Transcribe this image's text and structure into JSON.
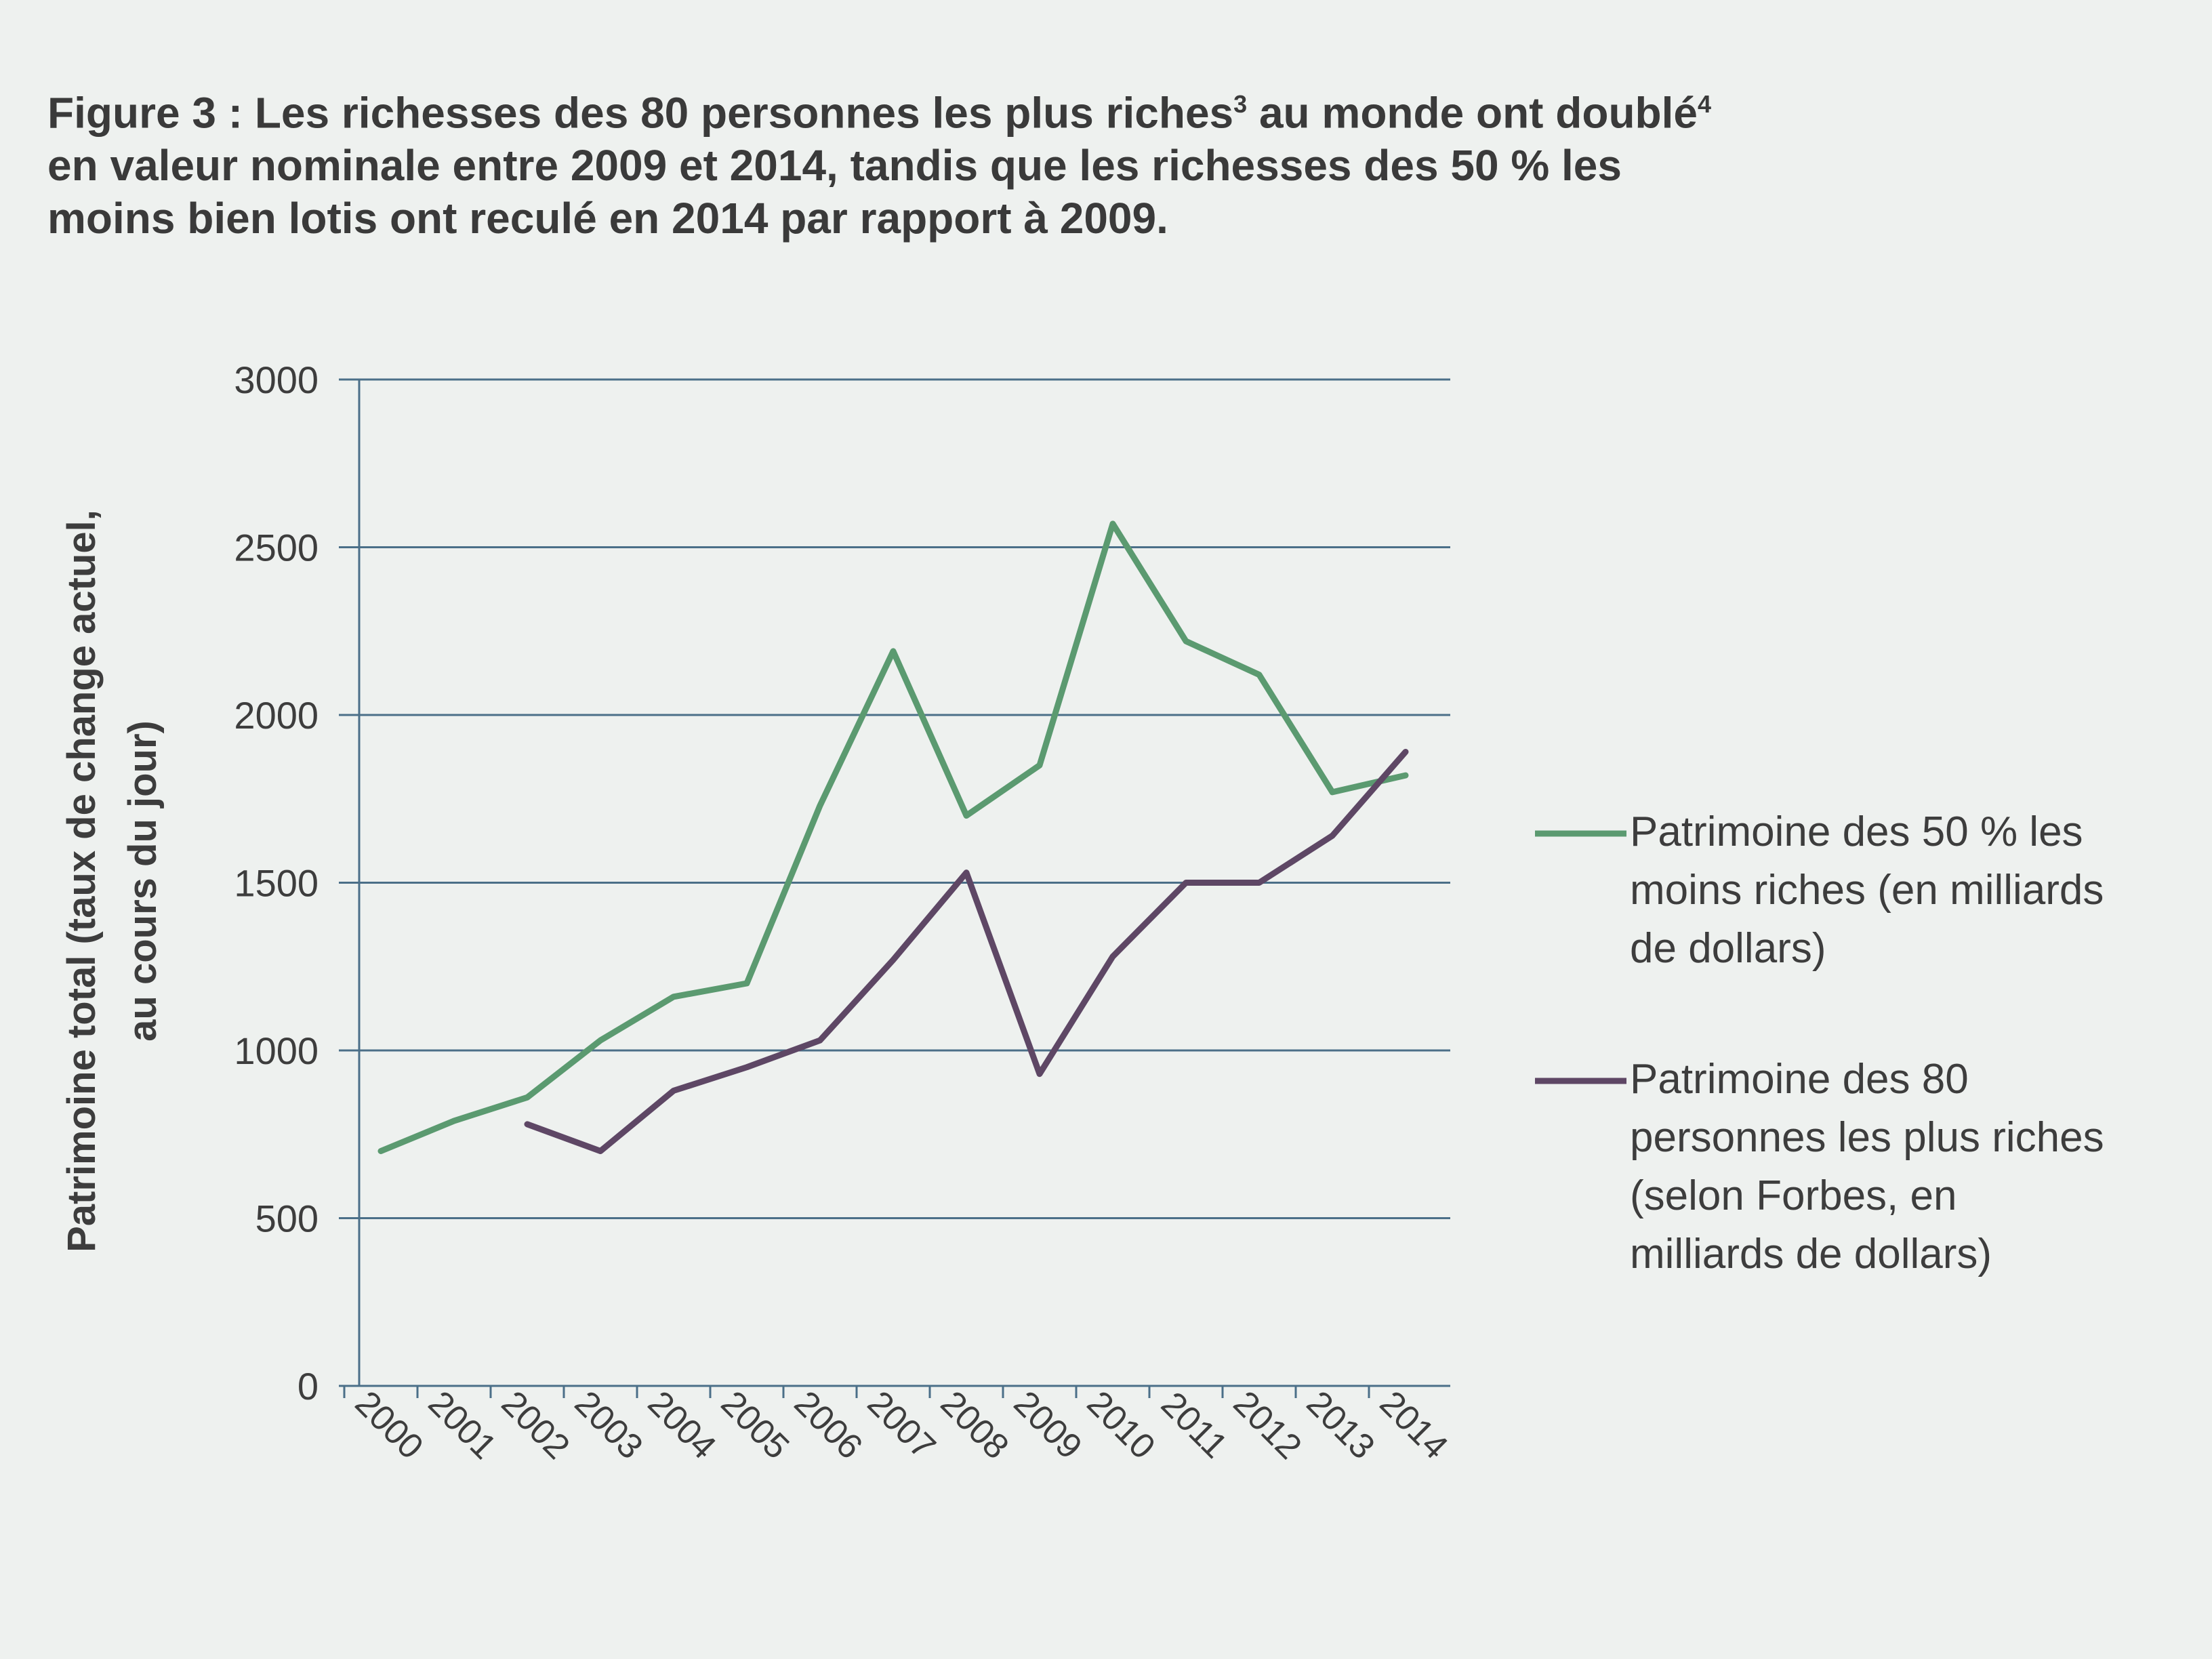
{
  "figure": {
    "label": "Figure 3 :",
    "line1": "Les richesses des 80 personnes les plus riches",
    "sup1": "3",
    "line1b": " au monde ont doublé",
    "sup2": "4",
    "line2": "en valeur nominale entre 2009 et 2014, tandis que les richesses des 50 % les",
    "line3": "moins bien lotis ont reculé en 2014 par rapport à 2009."
  },
  "chart_data": {
    "type": "line",
    "title": "",
    "xlabel": "",
    "ylabel": "Patrimoine total (taux de change actuel, au cours du jour)",
    "ylabel_lines": [
      "Patrimoine total (taux de change actuel,",
      "au cours du jour)"
    ],
    "x": [
      "2000",
      "2001",
      "2002",
      "2003",
      "2004",
      "2005",
      "2006",
      "2007",
      "2008",
      "2009",
      "2010",
      "2011",
      "2012",
      "2013",
      "2014"
    ],
    "ylim": [
      0,
      3000
    ],
    "yticks": [
      0,
      500,
      1000,
      1500,
      2000,
      2500,
      3000
    ],
    "grid": "horizontal",
    "legend_position": "right",
    "series": [
      {
        "name": "Patrimoine des 50 % les moins riches (en milliards de dollars)",
        "legend_lines": [
          "Patrimoine des 50 % les",
          "moins riches (en milliards",
          "de dollars)"
        ],
        "color": "#5b9a70",
        "values": [
          700,
          790,
          860,
          1030,
          1160,
          1200,
          1730,
          2190,
          1700,
          1850,
          2570,
          2220,
          2120,
          1770,
          1820
        ]
      },
      {
        "name": "Patrimoine des 80 personnes les plus riches (selon Forbes, en milliards de dollars)",
        "legend_lines": [
          "Patrimoine des 80",
          "personnes les plus riches",
          "(selon Forbes, en",
          "milliards de dollars)"
        ],
        "color": "#5e4765",
        "values": [
          null,
          null,
          780,
          700,
          880,
          950,
          1030,
          1270,
          1530,
          930,
          1280,
          1500,
          1500,
          1640,
          1890
        ]
      }
    ]
  }
}
